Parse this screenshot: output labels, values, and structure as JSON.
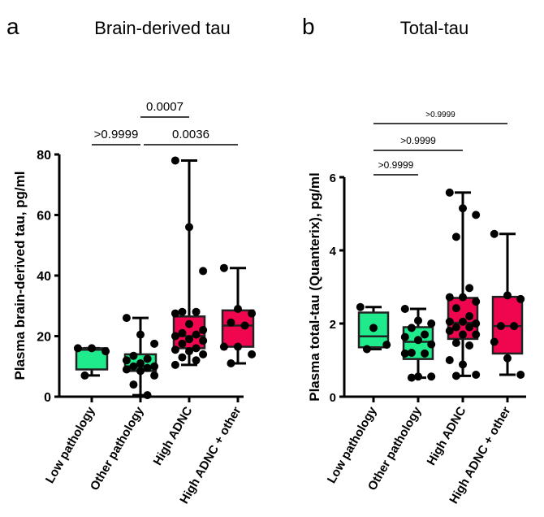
{
  "chart_data": [
    {
      "type": "box",
      "panel_label": "a",
      "title": "Brain-derived tau",
      "ylabel": "Plasma brain-derived tau, pg/ml",
      "ylim": [
        0,
        80
      ],
      "yticks": [
        0,
        20,
        40,
        60,
        80
      ],
      "categories": [
        "Low pathology",
        "Other pathology",
        "High ADNC",
        "High ADNC + other"
      ],
      "colors": [
        "#1FEA8C",
        "#1FEA8C",
        "#F0064F",
        "#F0064F"
      ],
      "boxes": [
        {
          "min": 7,
          "q1": 9,
          "median": 15.5,
          "q3": 16,
          "max": 16,
          "points": [
            16,
            16,
            15,
            7
          ]
        },
        {
          "min": 0.5,
          "q1": 8.5,
          "median": 10,
          "q3": 14,
          "max": 26,
          "points": [
            26,
            20.5,
            17.5,
            13.5,
            12.5,
            12,
            11,
            10,
            10,
            9.5,
            9,
            8.5,
            7,
            4,
            0.5
          ]
        },
        {
          "min": 10.5,
          "q1": 16,
          "median": 20,
          "q3": 26.5,
          "max": 78,
          "points": [
            78,
            56,
            41.5,
            28,
            28,
            27.5,
            24,
            22,
            21,
            20.5,
            20,
            19,
            18.5,
            17.5,
            16,
            15.5,
            15,
            14,
            13,
            12,
            10.5
          ]
        },
        {
          "min": 11,
          "q1": 16.5,
          "median": 23.5,
          "q3": 28.5,
          "max": 42.5,
          "points": [
            42.5,
            29,
            27.5,
            24.5,
            23.5,
            16.5,
            16.5,
            14,
            11
          ]
        }
      ],
      "comparisons": [
        {
          "from": 0,
          "to": 1,
          "label": ">0.9999"
        },
        {
          "from": 1,
          "to": 3,
          "label": "0.0036"
        },
        {
          "from": 1,
          "to": 2,
          "label": "0.0007"
        }
      ]
    },
    {
      "type": "box",
      "panel_label": "b",
      "title": "Total-tau",
      "ylabel": "Plasma total-tau (Quanterix), pg/ml",
      "ylim": [
        0,
        6
      ],
      "yticks": [
        0,
        2,
        4,
        6
      ],
      "categories": [
        "Low pathology",
        "Other pathology",
        "High ADNC",
        "High ADNC + other"
      ],
      "colors": [
        "#1FEA8C",
        "#1FEA8C",
        "#F0064F",
        "#F0064F"
      ],
      "boxes": [
        {
          "min": 1.3,
          "q1": 1.35,
          "median": 1.65,
          "q3": 2.3,
          "max": 2.45,
          "points": [
            2.45,
            1.88,
            1.42,
            1.3
          ]
        },
        {
          "min": 0.52,
          "q1": 1.03,
          "median": 1.5,
          "q3": 1.9,
          "max": 2.4,
          "points": [
            2.4,
            2.08,
            2.0,
            1.88,
            1.7,
            1.63,
            1.55,
            1.43,
            1.2,
            1.18,
            1.18,
            0.55,
            0.55,
            0.52
          ]
        },
        {
          "min": 0.57,
          "q1": 1.58,
          "median": 2.02,
          "q3": 2.7,
          "max": 5.58,
          "points": [
            5.58,
            5.15,
            4.97,
            4.37,
            2.97,
            2.72,
            2.72,
            2.6,
            2.42,
            2.2,
            2.05,
            2.05,
            2.0,
            1.9,
            1.9,
            1.8,
            1.7,
            1.7,
            1.47,
            1.4,
            1.0,
            0.88,
            0.6,
            0.57
          ]
        },
        {
          "min": 0.6,
          "q1": 1.18,
          "median": 1.93,
          "q3": 2.73,
          "max": 4.45,
          "points": [
            4.45,
            2.77,
            2.67,
            1.93,
            1.93,
            1.5,
            1.05,
            0.6
          ]
        }
      ],
      "comparisons": [
        {
          "from": 0,
          "to": 1,
          "label": ">0.9999"
        },
        {
          "from": 0,
          "to": 2,
          "label": ">0.9999"
        },
        {
          "from": 0,
          "to": 3,
          "label": ">0.9999"
        }
      ]
    }
  ]
}
